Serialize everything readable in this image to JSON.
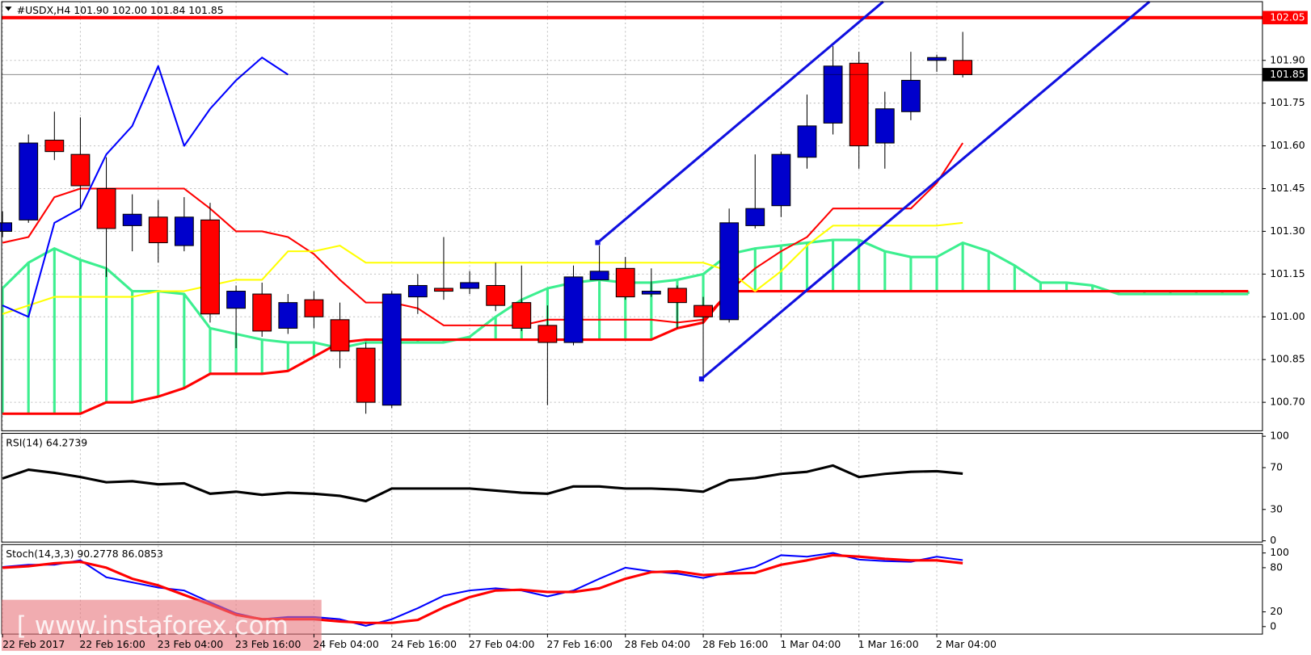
{
  "chart_data": [
    {
      "type": "candlestick",
      "title": "#USDX,H4  101.90 102.00 101.84 101.85",
      "categories": [
        "22 Feb 2017",
        null,
        null,
        "22 Feb 16:00",
        null,
        null,
        "23 Feb 04:00",
        null,
        null,
        "23 Feb 16:00",
        null,
        null,
        "24 Feb 04:00",
        null,
        null,
        "24 Feb 16:00",
        null,
        null,
        "27 Feb 04:00",
        null,
        null,
        "27 Feb 16:00",
        null,
        null,
        "28 Feb 04:00",
        null,
        null,
        "28 Feb 16:00",
        null,
        null,
        "1 Mar 04:00",
        null,
        null,
        "1 Mar 16:00",
        null,
        null,
        "2 Mar 04:00",
        null
      ],
      "open": [
        101.3,
        101.34,
        101.62,
        101.57,
        101.45,
        101.32,
        101.35,
        101.25,
        101.34,
        101.03,
        101.08,
        100.96,
        101.06,
        100.99,
        100.89,
        100.69,
        101.07,
        101.1,
        101.1,
        101.11,
        101.05,
        100.97,
        100.91,
        101.13,
        101.17,
        101.08,
        101.1,
        101.04,
        100.99,
        101.32,
        101.39,
        101.56,
        101.68,
        101.89,
        101.61,
        101.72,
        101.9,
        101.9
      ],
      "high": [
        101.37,
        101.64,
        101.72,
        101.7,
        101.56,
        101.43,
        101.41,
        101.42,
        101.4,
        101.11,
        101.12,
        101.08,
        101.09,
        101.05,
        100.91,
        101.09,
        101.15,
        101.28,
        101.16,
        101.19,
        101.18,
        101.04,
        101.18,
        101.25,
        101.21,
        101.17,
        101.11,
        101.07,
        101.38,
        101.57,
        101.58,
        101.78,
        101.95,
        101.93,
        101.79,
        101.93,
        101.92,
        102.0
      ],
      "low": [
        101.28,
        101.33,
        101.55,
        101.38,
        101.14,
        101.23,
        101.19,
        101.23,
        100.98,
        100.89,
        100.93,
        100.94,
        100.96,
        100.82,
        100.66,
        100.68,
        101.01,
        101.06,
        101.08,
        101.02,
        100.95,
        100.69,
        100.9,
        101.13,
        101.06,
        101.07,
        100.96,
        100.79,
        100.98,
        101.31,
        101.35,
        101.52,
        101.64,
        101.52,
        101.52,
        101.69,
        101.86,
        101.84
      ],
      "close": [
        101.33,
        101.61,
        101.58,
        101.46,
        101.31,
        101.36,
        101.26,
        101.35,
        101.01,
        101.09,
        100.95,
        101.05,
        101.0,
        100.88,
        100.7,
        101.08,
        101.11,
        101.09,
        101.12,
        101.04,
        100.96,
        100.91,
        101.14,
        101.16,
        101.07,
        101.09,
        101.05,
        101.0,
        101.33,
        101.38,
        101.57,
        101.67,
        101.88,
        101.6,
        101.73,
        101.83,
        101.91,
        101.85
      ],
      "up_color": "#0000cc",
      "down_color": "#ff0000",
      "cloud": {
        "span_a": {
          "color": "#3cef8f",
          "values": [
            101.1,
            101.19,
            101.24,
            101.2,
            101.17,
            101.09,
            101.09,
            101.08,
            100.96,
            100.94,
            100.92,
            100.91,
            100.91,
            100.89,
            100.91,
            100.91,
            100.91,
            100.91,
            100.93,
            101.0,
            101.06,
            101.1,
            101.12,
            101.13,
            101.12,
            101.12,
            101.13,
            101.15,
            101.22,
            101.24,
            101.25,
            101.26,
            101.27,
            101.27,
            101.23,
            101.21,
            101.21,
            101.26,
            101.23,
            101.18,
            101.12,
            101.12,
            101.11,
            101.08,
            101.08,
            101.08,
            101.08,
            101.08,
            101.08
          ]
        },
        "span_b": {
          "color": "#ff0000",
          "values": [
            100.66,
            100.66,
            100.66,
            100.66,
            100.7,
            100.7,
            100.72,
            100.75,
            100.8,
            100.8,
            100.8,
            100.81,
            100.86,
            100.91,
            100.92,
            100.92,
            100.92,
            100.92,
            100.92,
            100.92,
            100.92,
            100.92,
            100.92,
            100.92,
            100.92,
            100.92,
            100.96,
            100.98,
            101.09,
            101.09,
            101.09,
            101.09,
            101.09,
            101.09,
            101.09,
            101.09,
            101.09,
            101.09,
            101.09,
            101.09,
            101.09,
            101.09,
            101.09,
            101.09,
            101.09,
            101.09,
            101.09,
            101.09,
            101.09
          ]
        }
      },
      "overlays": [
        {
          "color": "#ff0000",
          "values": [
            101.26,
            101.28,
            101.42,
            101.45,
            101.45,
            101.45,
            101.45,
            101.45,
            101.38,
            101.3,
            101.3,
            101.28,
            101.22,
            101.13,
            101.05,
            101.05,
            101.03,
            100.97,
            100.97,
            100.97,
            100.97,
            100.99,
            100.99,
            100.99,
            100.99,
            100.99,
            100.98,
            100.99,
            101.09,
            101.17,
            101.23,
            101.28,
            101.38,
            101.38,
            101.38,
            101.38,
            101.47,
            101.61
          ]
        },
        {
          "color": "#ffff00",
          "values": [
            101.01,
            101.04,
            101.07,
            101.07,
            101.07,
            101.07,
            101.09,
            101.09,
            101.11,
            101.13,
            101.13,
            101.23,
            101.23,
            101.25,
            101.19,
            101.19,
            101.19,
            101.19,
            101.19,
            101.19,
            101.19,
            101.19,
            101.19,
            101.19,
            101.19,
            101.19,
            101.19,
            101.19,
            101.16,
            101.09,
            101.16,
            101.25,
            101.32,
            101.32,
            101.32,
            101.32,
            101.32,
            101.33
          ]
        },
        {
          "color": "#0000ff",
          "values": [
            101.04,
            101.0,
            101.33,
            101.38,
            101.57,
            101.67,
            101.88,
            101.6,
            101.73,
            101.83,
            101.91,
            101.85
          ]
        }
      ],
      "levels": [
        {
          "value": 102.05,
          "label": "102.05",
          "color": "#ff0000"
        },
        {
          "value": 101.85,
          "label": "101.85",
          "color": "#000000"
        }
      ],
      "ylim": [
        100.6,
        102.106
      ],
      "yticks": [
        {
          "value": 101.9,
          "label": "101.90"
        },
        {
          "value": 101.75,
          "label": "101.75"
        },
        {
          "value": 101.6,
          "label": "101.60"
        },
        {
          "value": 101.45,
          "label": "101.45"
        },
        {
          "value": 101.3,
          "label": "101.30"
        },
        {
          "value": 101.15,
          "label": "101.15"
        },
        {
          "value": 101.0,
          "label": "101.00"
        },
        {
          "value": 100.85,
          "label": "100.85"
        },
        {
          "value": 100.7,
          "label": "100.70"
        }
      ],
      "grid": true,
      "watermark": "[ www.instaforex.com"
    },
    {
      "type": "line",
      "title": "RSI(14) 64.2739",
      "color": "#000000",
      "values": [
        59.6,
        68,
        65,
        61,
        56,
        57,
        54,
        55,
        45,
        47,
        44,
        46,
        45,
        43,
        38,
        50,
        50,
        50,
        50,
        48,
        46,
        45,
        52,
        52,
        50,
        50,
        49,
        47,
        58,
        60,
        64,
        66,
        72,
        61,
        64,
        66,
        66.6,
        64.27
      ],
      "ylim": [
        -1.2,
        102.8
      ],
      "yticks": [
        100,
        70,
        30,
        0
      ]
    },
    {
      "type": "line",
      "title": "Stoch(14,3,3) 90.2778 86.0853",
      "series": [
        {
          "color": "#0000ff",
          "values": [
            81,
            84,
            84,
            90,
            67,
            60,
            53,
            49,
            33,
            18,
            10,
            13,
            13,
            10,
            1,
            10,
            25,
            42,
            49,
            52,
            49,
            41,
            49,
            65,
            80,
            75,
            72,
            66,
            74,
            81,
            97,
            95,
            100,
            91,
            89,
            88,
            95,
            90.28
          ]
        },
        {
          "color": "#ff0000",
          "values": [
            80,
            82,
            86,
            88,
            80,
            65,
            56,
            43,
            30,
            16,
            10,
            10,
            10,
            7,
            5,
            5,
            9,
            26,
            40,
            49,
            50,
            47,
            47,
            52,
            65,
            74,
            75,
            70,
            72,
            73,
            84,
            90,
            97,
            95,
            92,
            90,
            90,
            86.09
          ]
        }
      ],
      "ylim": [
        -10.2,
        111.4
      ],
      "yticks": [
        100,
        80,
        20,
        0
      ]
    }
  ]
}
